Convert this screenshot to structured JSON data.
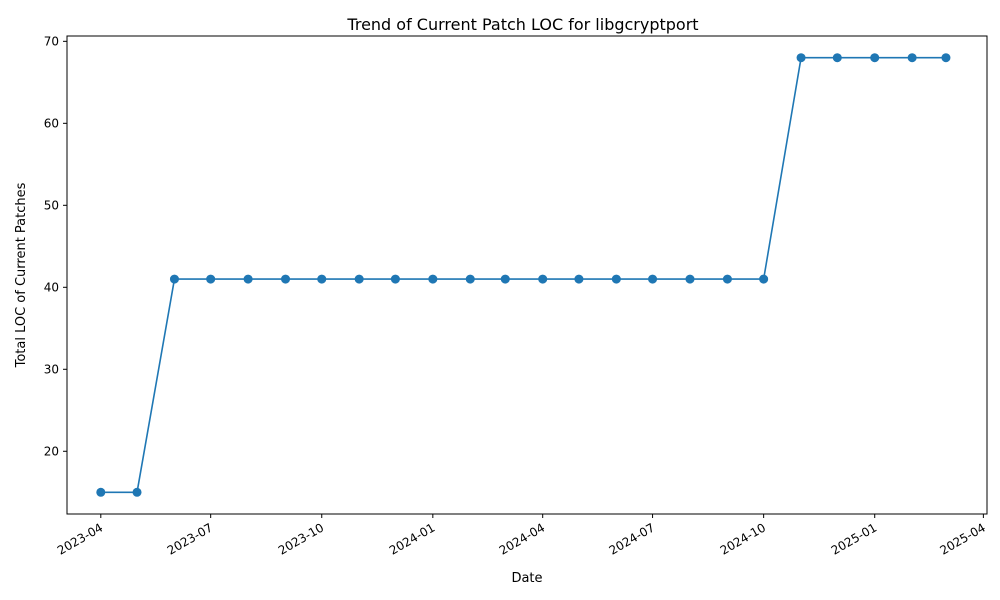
{
  "chart_data": {
    "type": "line",
    "title": "Trend of Current Patch LOC for libgcryptport",
    "xlabel": "Date",
    "ylabel": "Total LOC of Current Patches",
    "x_axis_type": "date",
    "xlim": [
      "2023-03-04",
      "2025-04-04"
    ],
    "ylim": [
      12.35,
      70.65
    ],
    "x_ticks": [
      "2023-04",
      "2023-07",
      "2023-10",
      "2024-01",
      "2024-04",
      "2024-07",
      "2024-10",
      "2025-01",
      "2025-04"
    ],
    "y_ticks": [
      20,
      30,
      40,
      50,
      60,
      70
    ],
    "grid": false,
    "legend": "none",
    "series": [
      {
        "color": "#1f77b4",
        "marker": "circle",
        "points": [
          {
            "x": "2023-04-01",
            "y": 15
          },
          {
            "x": "2023-05-01",
            "y": 15
          },
          {
            "x": "2023-06-01",
            "y": 41
          },
          {
            "x": "2023-07-01",
            "y": 41
          },
          {
            "x": "2023-08-01",
            "y": 41
          },
          {
            "x": "2023-09-01",
            "y": 41
          },
          {
            "x": "2023-10-01",
            "y": 41
          },
          {
            "x": "2023-11-01",
            "y": 41
          },
          {
            "x": "2023-12-01",
            "y": 41
          },
          {
            "x": "2024-01-01",
            "y": 41
          },
          {
            "x": "2024-02-01",
            "y": 41
          },
          {
            "x": "2024-03-01",
            "y": 41
          },
          {
            "x": "2024-04-01",
            "y": 41
          },
          {
            "x": "2024-05-01",
            "y": 41
          },
          {
            "x": "2024-06-01",
            "y": 41
          },
          {
            "x": "2024-07-01",
            "y": 41
          },
          {
            "x": "2024-08-01",
            "y": 41
          },
          {
            "x": "2024-09-01",
            "y": 41
          },
          {
            "x": "2024-10-01",
            "y": 41
          },
          {
            "x": "2024-11-01",
            "y": 68
          },
          {
            "x": "2024-12-01",
            "y": 68
          },
          {
            "x": "2025-01-01",
            "y": 68
          },
          {
            "x": "2025-02-01",
            "y": 68
          },
          {
            "x": "2025-03-01",
            "y": 68
          }
        ]
      }
    ]
  }
}
